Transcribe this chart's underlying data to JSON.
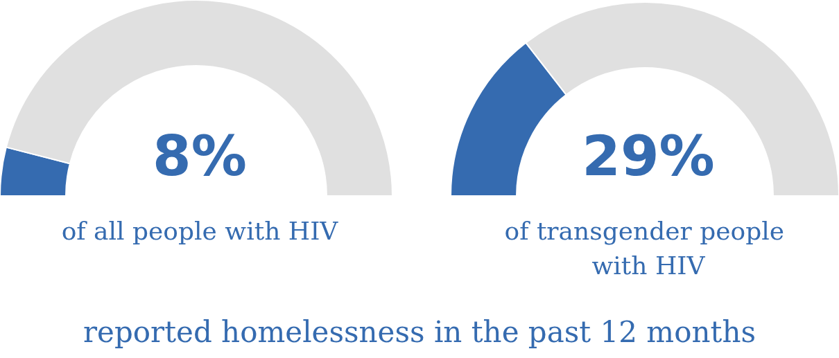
{
  "chart_data": [
    {
      "type": "donut",
      "title": "8%",
      "subtitle": "of all people with HIV",
      "categories": [
        null,
        null
      ],
      "values": [
        8,
        92
      ],
      "colors": [
        "#356bb0",
        "#e0e0e0"
      ],
      "annotations": [
        "reported homelessness in the past 12 months"
      ]
    },
    {
      "type": "donut",
      "title": "29%",
      "subtitle": "of transgender people with HIV",
      "categories": [
        null,
        null
      ],
      "values": [
        29,
        71
      ],
      "colors": [
        "#356bb0",
        "#e0e0e0"
      ]
    }
  ]
}
